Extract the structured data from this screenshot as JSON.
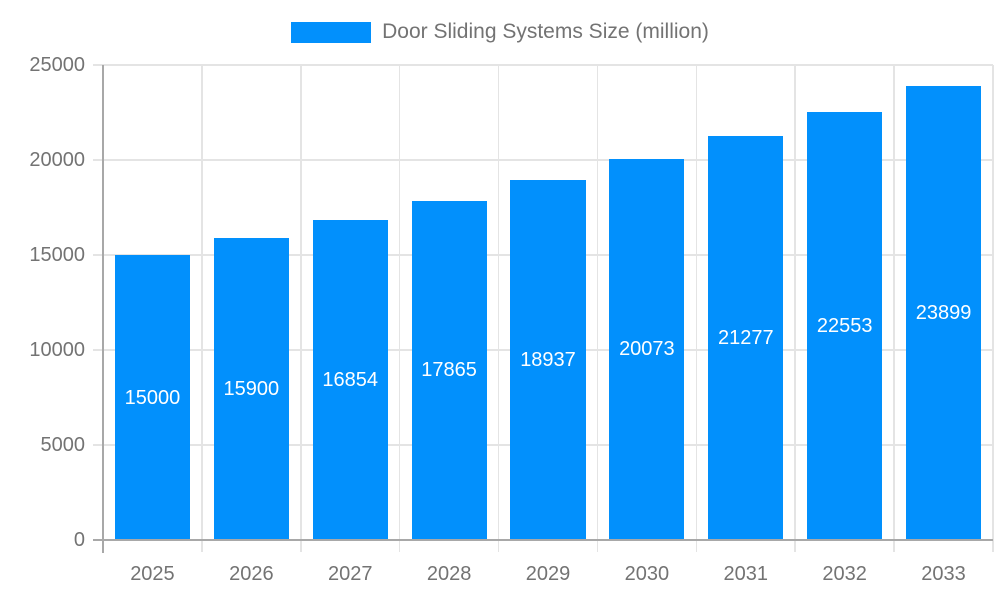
{
  "legend": {
    "label": "Door Sliding Systems Size (million)",
    "swatch_color": "#0290fc"
  },
  "chart_data": {
    "type": "bar",
    "title": "",
    "xlabel": "",
    "ylabel": "",
    "categories": [
      "2025",
      "2026",
      "2027",
      "2028",
      "2029",
      "2030",
      "2031",
      "2032",
      "2033"
    ],
    "series": [
      {
        "name": "Door Sliding Systems Size (million)",
        "values": [
          15000,
          15900,
          16854,
          17865,
          18937,
          20073,
          21277,
          22553,
          23899
        ]
      }
    ],
    "ylim": [
      0,
      25000
    ],
    "yticks": [
      0,
      5000,
      10000,
      15000,
      20000,
      25000
    ],
    "grid": true,
    "legend_position": "top",
    "bar_color": "#0290fc",
    "value_label_color": "#ffffff",
    "axis_text_color": "#737373"
  }
}
